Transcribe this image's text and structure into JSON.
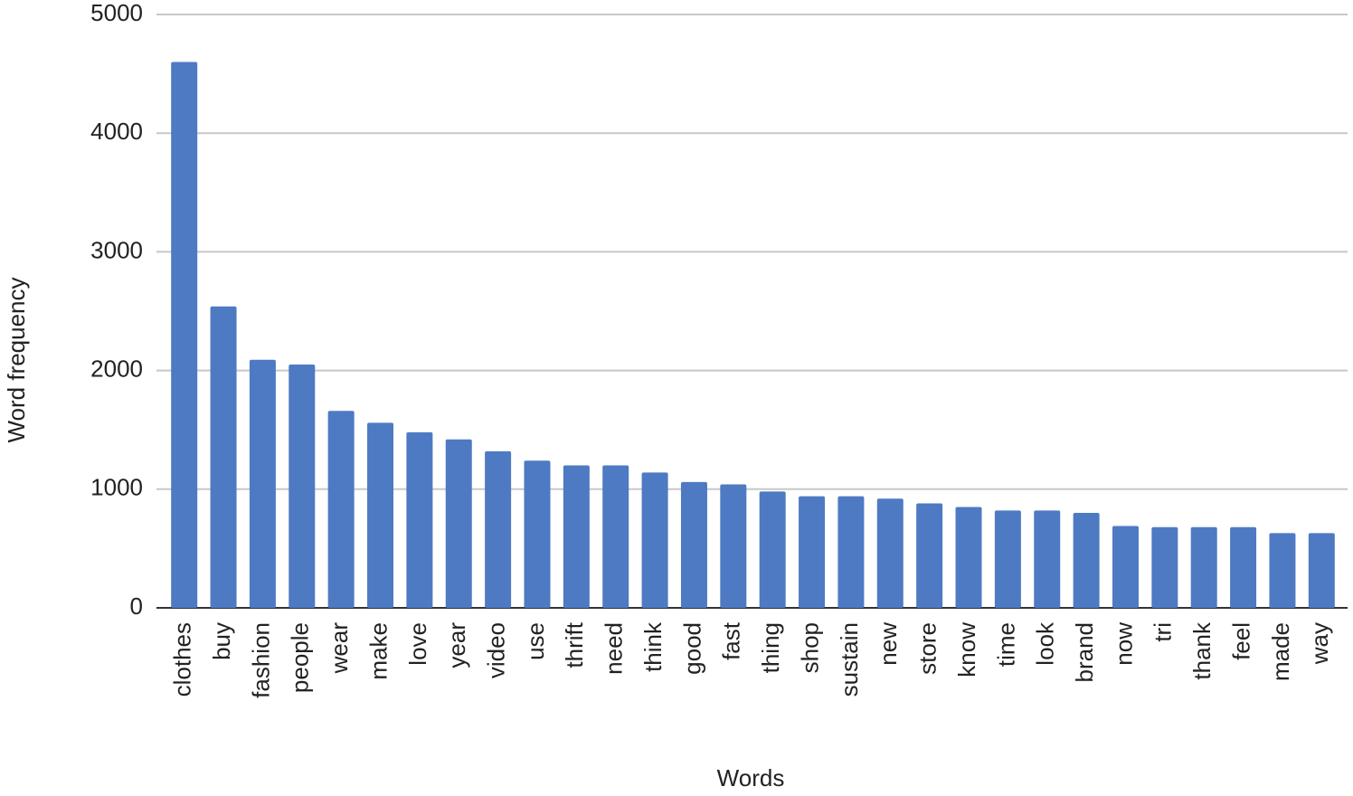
{
  "chart_data": {
    "type": "bar",
    "x_label": "Words",
    "y_label": "Word frequency",
    "categories": [
      "clothes",
      "buy",
      "fashion",
      "people",
      "wear",
      "make",
      "love",
      "year",
      "video",
      "use",
      "thrift",
      "need",
      "think",
      "good",
      "fast",
      "thing",
      "shop",
      "sustain",
      "new",
      "store",
      "know",
      "time",
      "look",
      "brand",
      "now",
      "tri",
      "thank",
      "feel",
      "made",
      "way"
    ],
    "values": [
      4600,
      2540,
      2090,
      2050,
      1660,
      1560,
      1480,
      1420,
      1320,
      1240,
      1200,
      1200,
      1140,
      1060,
      1040,
      980,
      940,
      940,
      920,
      880,
      850,
      820,
      820,
      800,
      690,
      680,
      680,
      680,
      630,
      630
    ],
    "color": "#4e7ac3",
    "ylim": [
      0,
      5000
    ],
    "yticks": [
      0,
      1000,
      2000,
      3000,
      4000,
      5000
    ],
    "grid": true
  }
}
